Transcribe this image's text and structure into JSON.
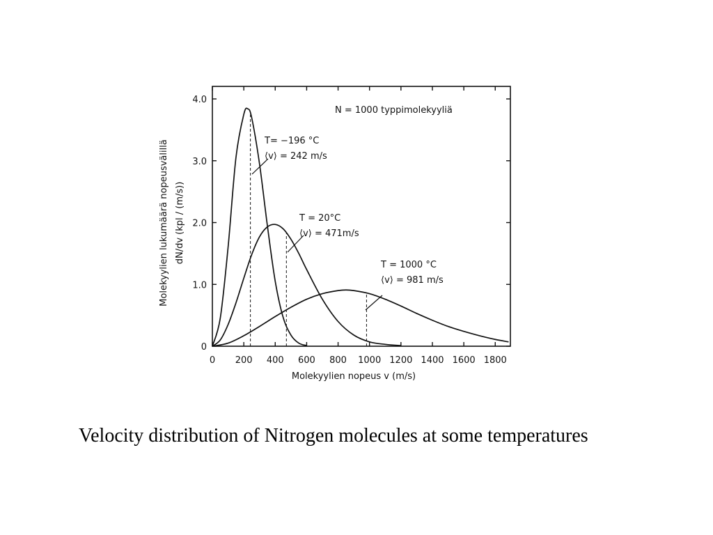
{
  "caption": "Velocity distribution of Nitrogen molecules at some temperatures",
  "chart_data": {
    "type": "line",
    "title": "N = 1000 typpimolekyyliä",
    "xlabel": "Molekyylien nopeus v (m/s)",
    "ylabel_lines": [
      "Molekyylien lukumäärä nopeusvälillä",
      "dN/dv (kpl / (m/s))"
    ],
    "xlim": [
      0,
      1900
    ],
    "ylim": [
      0,
      4.2
    ],
    "x_ticks": [
      0,
      200,
      400,
      600,
      800,
      1000,
      1200,
      1400,
      1600,
      1800
    ],
    "x_tick_labels": [
      "0",
      "200",
      "400",
      "600",
      "800",
      "1000",
      "1200",
      "1400",
      "1600",
      "1800"
    ],
    "y_ticks": [
      0,
      1.0,
      2.0,
      3.0,
      4.0
    ],
    "y_tick_labels": [
      "0",
      "1.0",
      "2.0",
      "3.0",
      "4.0"
    ],
    "grid": false,
    "series": [
      {
        "label_lines": [
          "T= −196 °C",
          "⟨v⟩ = 242 m/s"
        ],
        "mean_speed": 242,
        "x": [
          0,
          50,
          100,
          150,
          200,
          225,
          250,
          300,
          350,
          400,
          450,
          500,
          550,
          600
        ],
        "y": [
          0,
          0.45,
          1.6,
          3.05,
          3.75,
          3.84,
          3.7,
          2.95,
          1.95,
          1.05,
          0.47,
          0.18,
          0.05,
          0.01
        ]
      },
      {
        "label_lines": [
          "T = 20°C",
          "⟨v⟩ = 471m/s"
        ],
        "mean_speed": 471,
        "x": [
          0,
          50,
          100,
          150,
          200,
          250,
          300,
          350,
          400,
          450,
          500,
          550,
          600,
          700,
          800,
          900,
          1000,
          1100,
          1200
        ],
        "y": [
          0,
          0.1,
          0.35,
          0.7,
          1.1,
          1.48,
          1.77,
          1.93,
          1.97,
          1.9,
          1.73,
          1.5,
          1.24,
          0.76,
          0.4,
          0.18,
          0.07,
          0.03,
          0.01
        ]
      },
      {
        "label_lines": [
          "T = 1000 °C",
          "⟨v⟩ = 981 m/s"
        ],
        "mean_speed": 981,
        "x": [
          0,
          100,
          200,
          300,
          400,
          500,
          600,
          700,
          800,
          850,
          900,
          1000,
          1100,
          1200,
          1300,
          1400,
          1500,
          1600,
          1700,
          1800,
          1900
        ],
        "y": [
          0,
          0.05,
          0.17,
          0.32,
          0.48,
          0.63,
          0.76,
          0.85,
          0.9,
          0.91,
          0.9,
          0.85,
          0.76,
          0.65,
          0.53,
          0.42,
          0.32,
          0.24,
          0.17,
          0.11,
          0.07
        ]
      }
    ]
  }
}
